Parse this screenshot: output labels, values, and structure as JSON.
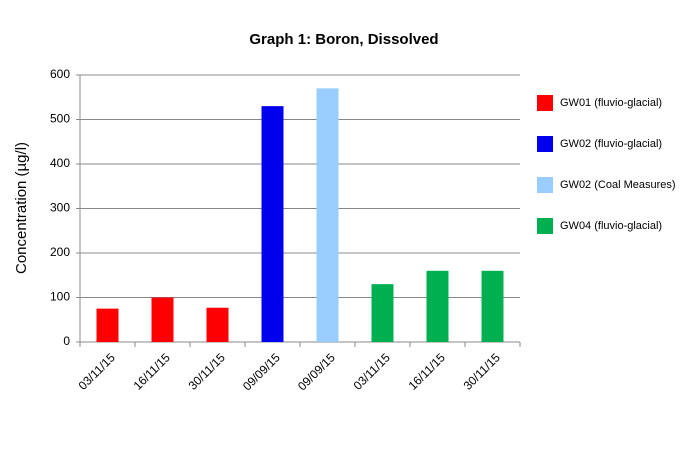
{
  "chart_data": {
    "type": "bar",
    "title": "Graph 1: Boron, Dissolved",
    "y_label": "Concentration (µg/l)",
    "categories": [
      "03/11/15",
      "16/11/15",
      "30/11/15",
      "09/09/15",
      "09/09/15",
      "03/11/15",
      "16/11/15",
      "30/11/15"
    ],
    "series": [
      {
        "name": "GW01 (fluvio-glacial)",
        "color": "#ff0000",
        "values": [
          75,
          100,
          77,
          null,
          null,
          null,
          null,
          null
        ]
      },
      {
        "name": "GW02 (fluvio-glacial)",
        "color": "#0000ee",
        "values": [
          null,
          null,
          null,
          530,
          null,
          null,
          null,
          null
        ]
      },
      {
        "name": "GW02 (Coal Measures)",
        "color": "#99ccff",
        "values": [
          null,
          null,
          null,
          null,
          570,
          null,
          null,
          null
        ]
      },
      {
        "name": "GW04 (fluvio-glacial)",
        "color": "#00b050",
        "values": [
          null,
          null,
          null,
          null,
          null,
          130,
          160,
          160
        ]
      }
    ],
    "ylim": [
      0,
      600
    ],
    "yticks": [
      0,
      100,
      200,
      300,
      400,
      500,
      600
    ],
    "grid": true,
    "legend": "right"
  }
}
